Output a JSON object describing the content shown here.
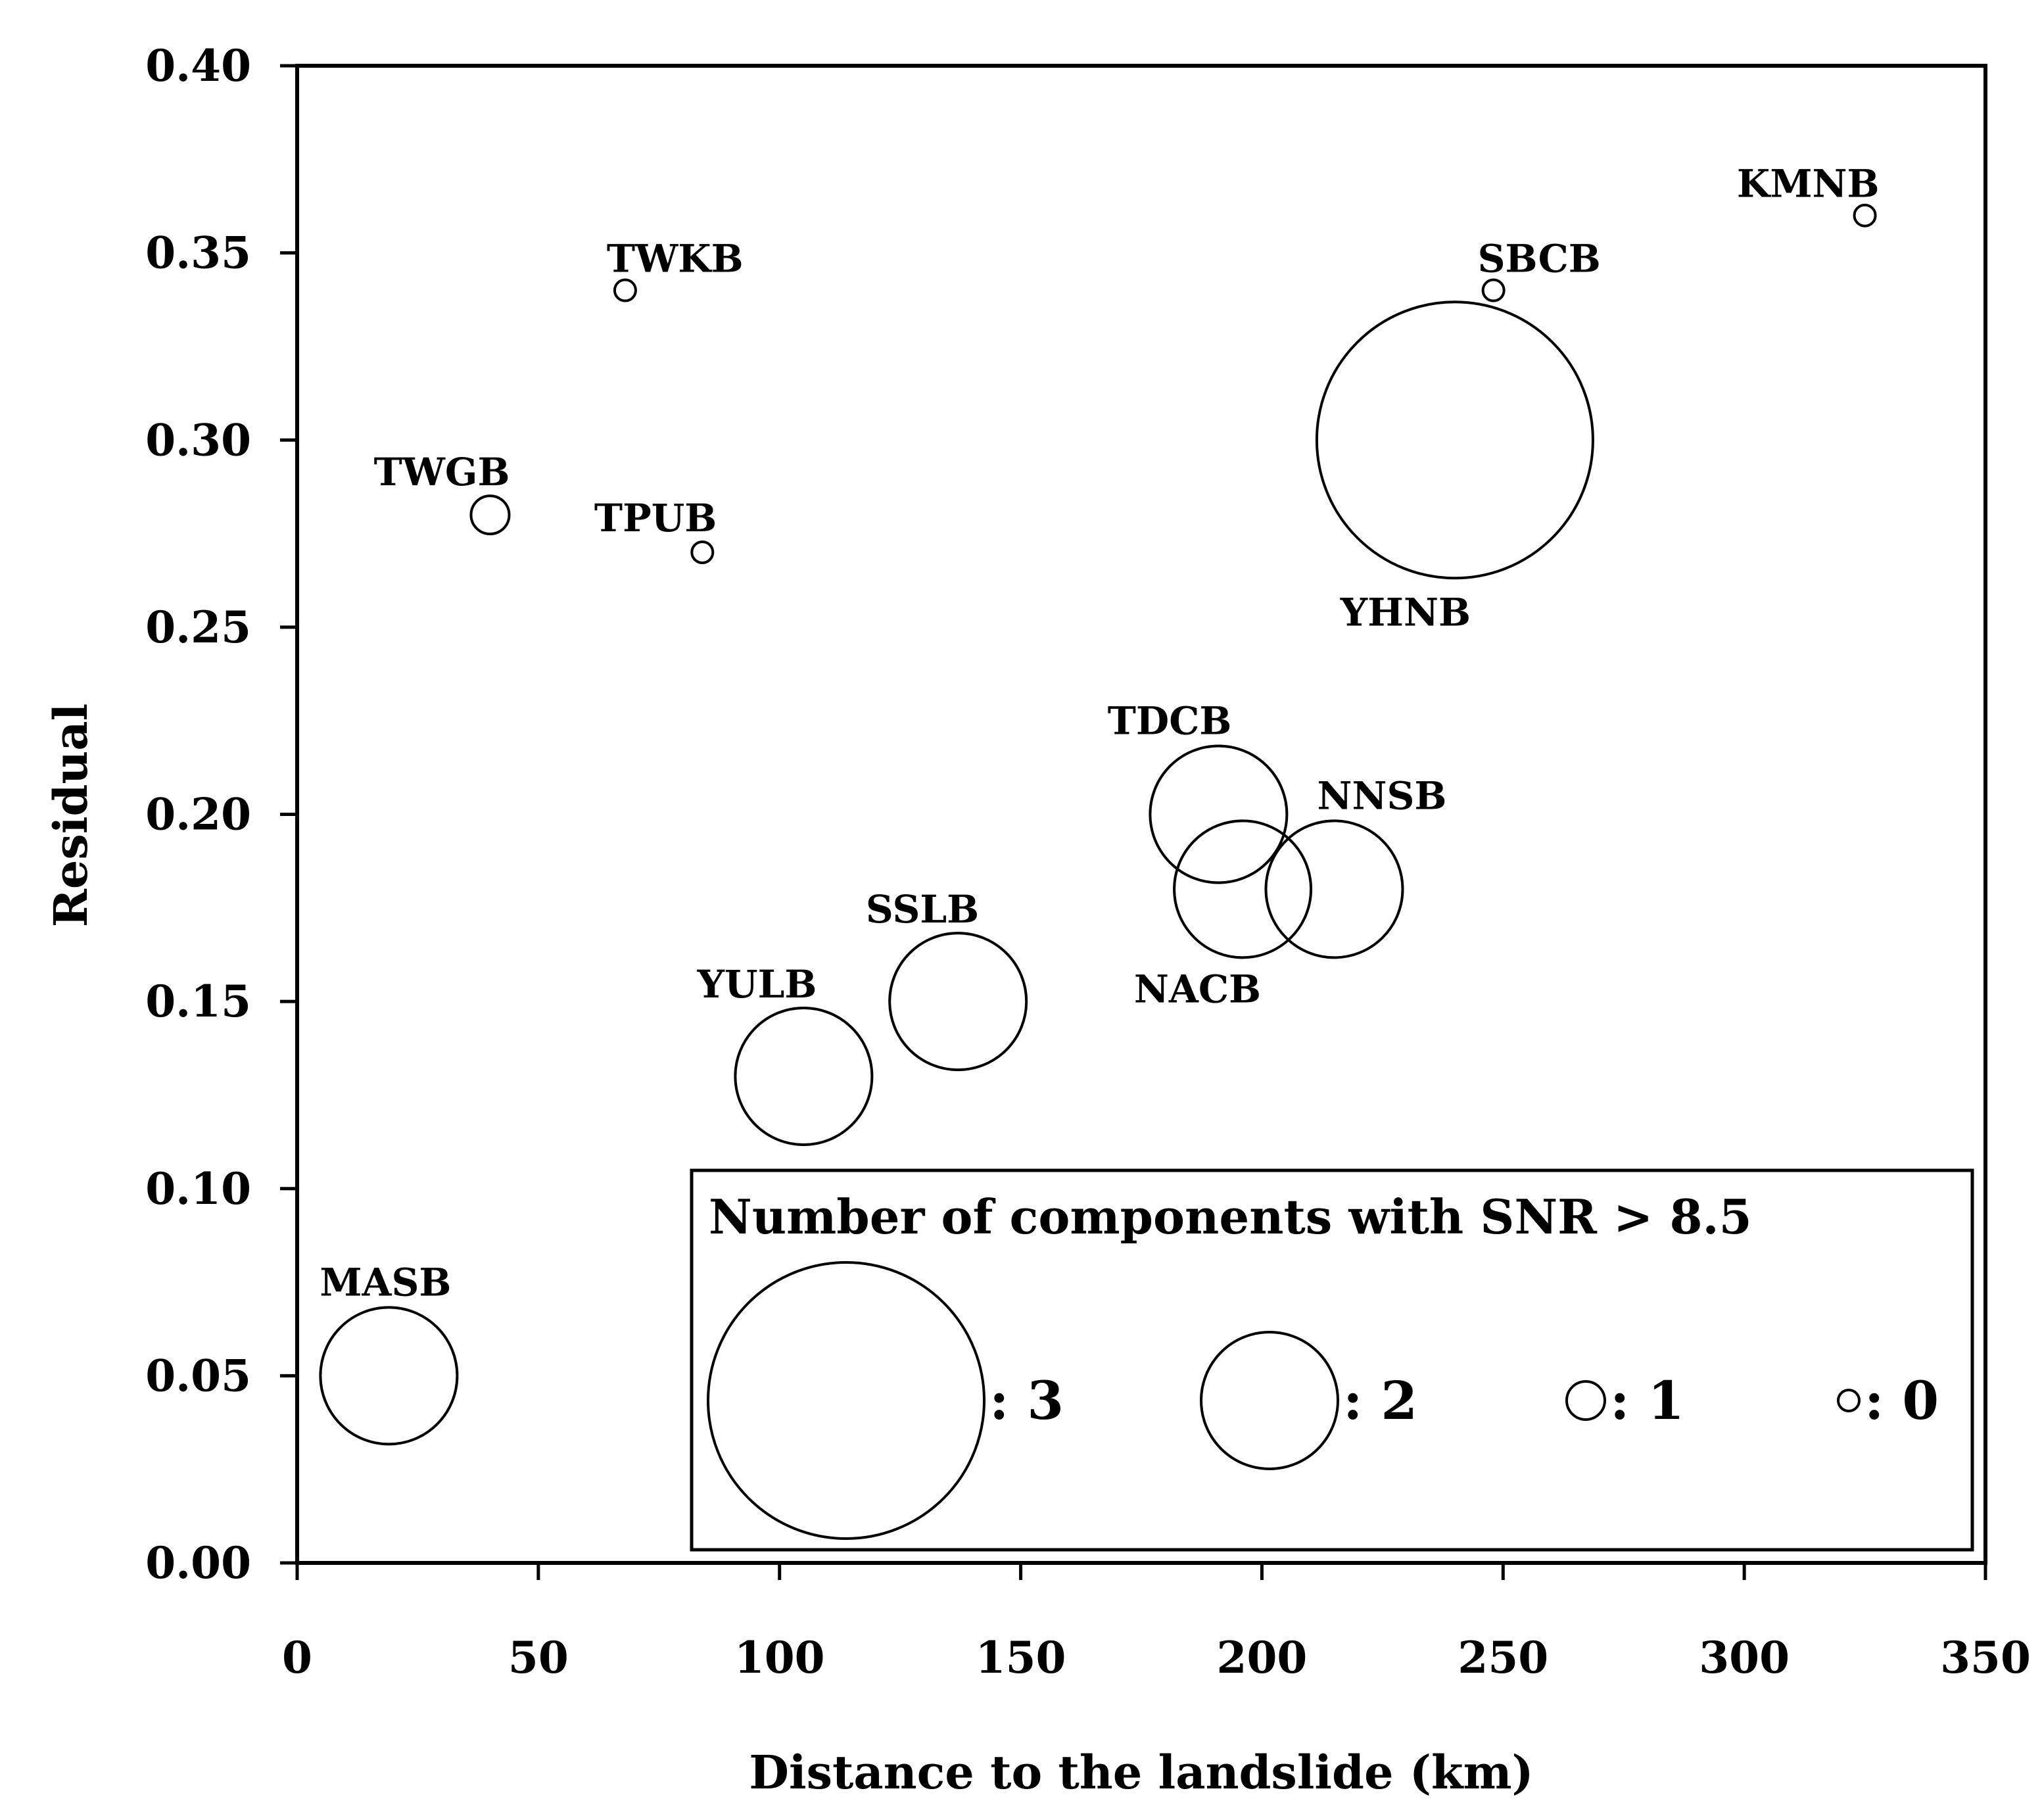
{
  "chart_data": {
    "type": "scatter",
    "subtype": "bubble",
    "title": "",
    "xlabel": "Distance to the landslide (km)",
    "ylabel": "Residual",
    "xlim": [
      0,
      350
    ],
    "ylim": [
      0.0,
      0.4
    ],
    "xticks": [
      0,
      50,
      100,
      150,
      200,
      250,
      300,
      350
    ],
    "xtick_labels": [
      "0",
      "50",
      "100",
      "150",
      "200",
      "250",
      "300",
      "350"
    ],
    "yticks": [
      0.0,
      0.05,
      0.1,
      0.15,
      0.2,
      0.25,
      0.3,
      0.35,
      0.4
    ],
    "ytick_labels": [
      "0.00",
      "0.05",
      "0.10",
      "0.15",
      "0.20",
      "0.25",
      "0.30",
      "0.35",
      "0.40"
    ],
    "grid": false,
    "size_variable": "Number of components with SNR > 8.5",
    "points": [
      {
        "name": "MASB",
        "x": 19,
        "y": 0.05,
        "count": 2,
        "label_pos": "above"
      },
      {
        "name": "TWGB",
        "x": 40,
        "y": 0.28,
        "count": 1,
        "label_pos": "above-left"
      },
      {
        "name": "TWKB",
        "x": 68,
        "y": 0.34,
        "count": 0,
        "label_pos": "above-right"
      },
      {
        "name": "TPUB",
        "x": 84,
        "y": 0.27,
        "count": 0,
        "label_pos": "above-left"
      },
      {
        "name": "YULB",
        "x": 105,
        "y": 0.13,
        "count": 2,
        "label_pos": "above-left"
      },
      {
        "name": "SSLB",
        "x": 137,
        "y": 0.15,
        "count": 2,
        "label_pos": "above-left"
      },
      {
        "name": "TDCB",
        "x": 191,
        "y": 0.2,
        "count": 2,
        "label_pos": "above-left"
      },
      {
        "name": "NACB",
        "x": 196,
        "y": 0.18,
        "count": 2,
        "label_pos": "below-left"
      },
      {
        "name": "NNSB",
        "x": 215,
        "y": 0.18,
        "count": 2,
        "label_pos": "above-right"
      },
      {
        "name": "YHNB",
        "x": 240,
        "y": 0.3,
        "count": 3,
        "label_pos": "below"
      },
      {
        "name": "SBCB",
        "x": 248,
        "y": 0.34,
        "count": 0,
        "label_pos": "above-right"
      },
      {
        "name": "KMNB",
        "x": 325,
        "y": 0.36,
        "count": 0,
        "label_pos": "above-left"
      }
    ],
    "legend": {
      "title": "Number of components with SNR > 8.5",
      "placement": "bottom-right",
      "entries": [
        {
          "count": 3,
          "label": ": 3"
        },
        {
          "count": 2,
          "label": ": 2"
        },
        {
          "count": 1,
          "label": ": 1"
        },
        {
          "count": 0,
          "label": ": 0"
        }
      ]
    }
  }
}
